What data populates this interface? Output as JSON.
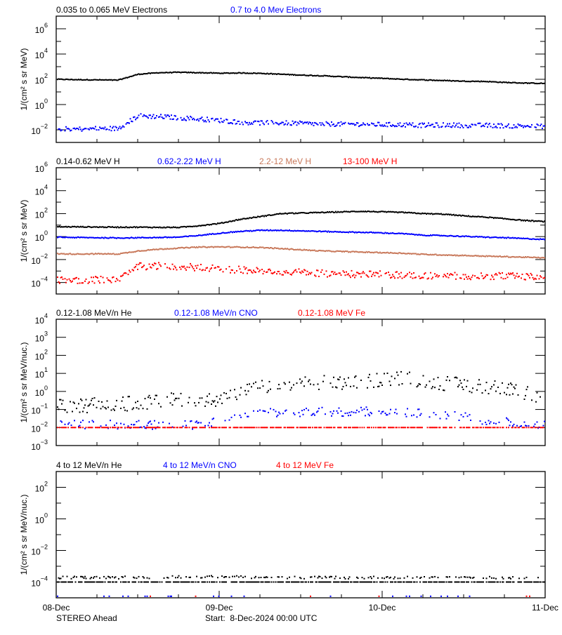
{
  "chart_data": [
    {
      "type": "scatter",
      "legend": [
        {
          "label": "0.035 to 0.065 MeV Electrons",
          "color": "#000000"
        },
        {
          "label": "0.7 to 4.0 Mev Electrons",
          "color": "#0000ff"
        }
      ],
      "ylabel": "1/(cm² s sr MeV)",
      "yscale": "log",
      "ylim_log10": [
        -3,
        7
      ],
      "ytick_labels_log10": [
        -2,
        0,
        2,
        4,
        6
      ],
      "x_hours": [
        0,
        3,
        6,
        9,
        12,
        15,
        18,
        21,
        24,
        27,
        30,
        33,
        36,
        39,
        42,
        45,
        48,
        51,
        54,
        57,
        60,
        63,
        66,
        69,
        72
      ],
      "series": [
        {
          "name": "0.035 to 0.065 MeV Electrons",
          "color": "#000000",
          "spread_log10": 0.03,
          "density": 1,
          "values_log10": [
            2.0,
            1.97,
            1.95,
            1.93,
            2.4,
            2.52,
            2.55,
            2.52,
            2.48,
            2.5,
            2.47,
            2.4,
            2.33,
            2.28,
            2.2,
            2.13,
            2.07,
            2.0,
            1.95,
            1.9,
            1.85,
            1.83,
            1.75,
            1.7,
            1.67
          ]
        },
        {
          "name": "0.7 to 4.0 Mev Electrons",
          "color": "#0000ff",
          "spread_log10": 0.18,
          "density": 0.9,
          "values_log10": [
            -1.9,
            -1.95,
            -1.9,
            -1.9,
            -0.9,
            -0.95,
            -1.05,
            -1.15,
            -1.25,
            -1.4,
            -1.45,
            -1.45,
            -1.5,
            -1.55,
            -1.55,
            -1.55,
            -1.6,
            -1.6,
            -1.65,
            -1.62,
            -1.65,
            -1.65,
            -1.68,
            -1.7,
            -1.72
          ]
        }
      ]
    },
    {
      "type": "scatter",
      "legend": [
        {
          "label": "0.14-0.62 MeV H",
          "color": "#000000"
        },
        {
          "label": "0.62-2.22 MeV H",
          "color": "#0000ff"
        },
        {
          "label": "2.2-12 MeV H",
          "color": "#c8785a"
        },
        {
          "label": "13-100 MeV H",
          "color": "#ff0000"
        }
      ],
      "ylabel": "1/(cm² s sr MeV)",
      "yscale": "log",
      "ylim_log10": [
        -5,
        6
      ],
      "ytick_labels_log10": [
        -4,
        -2,
        0,
        2,
        4,
        6
      ],
      "x_hours": [
        0,
        3,
        6,
        9,
        12,
        15,
        18,
        21,
        24,
        27,
        30,
        33,
        36,
        39,
        42,
        45,
        48,
        51,
        54,
        57,
        60,
        63,
        66,
        69,
        72
      ],
      "series": [
        {
          "name": "0.14-0.62 MeV H",
          "color": "#000000",
          "spread_log10": 0.04,
          "density": 1,
          "values_log10": [
            0.85,
            0.85,
            0.83,
            0.82,
            0.82,
            0.8,
            0.8,
            0.95,
            1.15,
            1.5,
            1.75,
            2.0,
            2.05,
            2.1,
            2.15,
            2.2,
            2.15,
            2.1,
            2.0,
            1.95,
            1.8,
            1.7,
            1.55,
            1.4,
            1.3
          ]
        },
        {
          "name": "0.62-2.22 MeV H",
          "color": "#0000ff",
          "spread_log10": 0.04,
          "density": 1,
          "values_log10": [
            -0.05,
            -0.08,
            -0.1,
            -0.12,
            -0.1,
            -0.08,
            -0.05,
            0.1,
            0.3,
            0.45,
            0.55,
            0.55,
            0.5,
            0.45,
            0.4,
            0.37,
            0.32,
            0.25,
            0.12,
            0.08,
            0.02,
            -0.05,
            -0.1,
            -0.18,
            -0.25
          ]
        },
        {
          "name": "2.2-12 MeV H",
          "color": "#c8785a",
          "spread_log10": 0.04,
          "density": 1,
          "values_log10": [
            -1.5,
            -1.52,
            -1.5,
            -1.52,
            -1.25,
            -1.1,
            -1.0,
            -0.92,
            -0.9,
            -0.92,
            -0.95,
            -1.05,
            -1.15,
            -1.25,
            -1.3,
            -1.35,
            -1.4,
            -1.45,
            -1.55,
            -1.6,
            -1.65,
            -1.7,
            -1.75,
            -1.8,
            -1.85
          ]
        },
        {
          "name": "13-100 MeV H",
          "color": "#ff0000",
          "spread_log10": 0.3,
          "density": 0.85,
          "values_log10": [
            -3.8,
            -3.8,
            -3.75,
            -3.75,
            -2.6,
            -2.55,
            -2.6,
            -2.7,
            -2.8,
            -2.9,
            -3.0,
            -3.1,
            -3.1,
            -3.2,
            -3.25,
            -3.3,
            -3.3,
            -3.35,
            -3.4,
            -3.4,
            -3.45,
            -3.45,
            -3.45,
            -3.5,
            -3.5
          ]
        }
      ]
    },
    {
      "type": "scatter",
      "legend": [
        {
          "label": "0.12-1.08 MeV/n He",
          "color": "#000000"
        },
        {
          "label": "0.12-1.08 MeV/n CNO",
          "color": "#0000ff"
        },
        {
          "label": "0.12-1.08 MeV Fe",
          "color": "#ff0000"
        }
      ],
      "ylabel": "1/(cm² s sr MeV/nuc.)",
      "yscale": "log",
      "ylim_log10": [
        -3,
        4
      ],
      "ytick_labels_log10": [
        -3,
        -2,
        -1,
        0,
        1,
        2,
        3,
        4
      ],
      "x_hours": [
        0,
        3,
        6,
        9,
        12,
        15,
        18,
        21,
        24,
        27,
        30,
        33,
        36,
        39,
        42,
        45,
        48,
        51,
        54,
        57,
        60,
        63,
        66,
        69,
        72
      ],
      "series": [
        {
          "name": "0.12-1.08 MeV/n He",
          "color": "#000000",
          "spread_log10": 0.4,
          "density": 0.55,
          "values_log10": [
            -0.85,
            -0.8,
            -0.75,
            -0.7,
            -0.65,
            -0.55,
            -0.45,
            -0.4,
            -0.5,
            -0.1,
            0.25,
            0.35,
            0.45,
            0.5,
            0.45,
            0.5,
            0.7,
            0.75,
            0.6,
            0.45,
            0.35,
            0.3,
            0.15,
            -0.1,
            -0.35
          ]
        },
        {
          "name": "0.12-1.08 MeV/n CNO",
          "color": "#0000ff",
          "spread_log10": 0.25,
          "density": 0.4,
          "values_log10": [
            -1.85,
            -1.85,
            -1.85,
            -1.85,
            -1.85,
            -1.85,
            -1.85,
            -1.85,
            -1.6,
            -1.3,
            -1.2,
            -1.2,
            -1.2,
            -1.1,
            -1.15,
            -1.1,
            -1.2,
            -1.15,
            -1.2,
            -1.3,
            -1.4,
            -1.6,
            -1.7,
            -1.8,
            -1.85
          ]
        },
        {
          "name": "0.12-1.08 MeV Fe",
          "color": "#ff0000",
          "spread_log10": 0.0,
          "density": 0.7,
          "values_log10": [
            -2,
            -2,
            -2,
            -2,
            -2,
            -2,
            -2,
            -2,
            -2,
            -2,
            -2,
            -2,
            -2,
            -2,
            -2,
            -2,
            -2,
            -2,
            -2,
            -2,
            -2,
            -2,
            -2,
            -2,
            -2
          ]
        }
      ]
    },
    {
      "type": "scatter",
      "legend": [
        {
          "label": "4 to 12 MeV/n He",
          "color": "#000000"
        },
        {
          "label": "4 to 12 MeV/n CNO",
          "color": "#0000ff"
        },
        {
          "label": "4 to 12 MeV Fe",
          "color": "#ff0000"
        }
      ],
      "ylabel": "1/(cm² s sr MeV/nuc.)",
      "yscale": "log",
      "ylim_log10": [
        -5,
        3
      ],
      "ytick_labels_log10": [
        -4,
        -2,
        0,
        2
      ],
      "x_hours": [
        0,
        3,
        6,
        9,
        12,
        15,
        18,
        21,
        24,
        27,
        30,
        33,
        36,
        39,
        42,
        45,
        48,
        51,
        54,
        57,
        60,
        63,
        66,
        69,
        72
      ],
      "series": [
        {
          "name": "4 to 12 MeV/n He",
          "color": "#000000",
          "spread_log10": 0.0,
          "density": 0.75,
          "values_log10": [
            -4,
            -4,
            -4,
            -4,
            -4,
            -4,
            -4,
            -4,
            -4,
            -4,
            -4,
            -4,
            -4,
            -4,
            -4,
            -4,
            -4,
            -4,
            -4,
            -4,
            -4,
            -4,
            -4,
            -4,
            -4
          ]
        },
        {
          "name": "4 to 12 MeV/n He",
          "color": "#000000",
          "spread_log10": 0.08,
          "density": 0.35,
          "values_log10": [
            -3.72,
            -3.72,
            -3.72,
            -3.72,
            -3.7,
            -3.7,
            -3.68,
            -3.68,
            -3.65,
            -3.68,
            -3.7,
            -3.7,
            -3.72,
            -3.72,
            -3.72,
            -3.72,
            -3.72,
            -3.72,
            -3.72,
            -3.72,
            -3.72,
            -3.72,
            -3.72,
            -3.72,
            -3.72
          ]
        },
        {
          "name": "4 to 12 MeV/n CNO",
          "color": "#0000ff",
          "spread_log10": 0.0,
          "density": 0.03,
          "values_log10": [
            -4.9,
            -4.9,
            -4.9,
            -4.9,
            -4.9,
            -4.9,
            -4.9,
            -4.9,
            -4.9,
            -4.9,
            -4.9,
            -4.9,
            -4.9,
            -4.9,
            -4.9,
            -4.9,
            -4.9,
            -4.9,
            -4.9,
            -4.9,
            -4.9,
            -4.9,
            -4.9,
            -4.9,
            -4.9
          ]
        },
        {
          "name": "4 to 12 MeV Fe",
          "color": "#ff0000",
          "spread_log10": 0.0,
          "density": 0.01,
          "values_log10": [
            -4.9,
            -4.9,
            -4.9,
            -4.9,
            -4.9,
            -4.9,
            -4.9,
            -4.9,
            -4.9,
            -4.9,
            -4.9,
            -4.9,
            -4.9,
            -4.9,
            -4.9,
            -4.9,
            -4.9,
            -4.9,
            -4.9,
            -4.9,
            -4.9,
            -4.9,
            -4.9,
            -4.9,
            -4.9
          ]
        }
      ]
    }
  ],
  "xaxis": {
    "range_hours": [
      0,
      72
    ],
    "tick_labels": [
      "08-Dec",
      "09-Dec",
      "10-Dec",
      "11-Dec"
    ]
  },
  "footer": {
    "spacecraft": "STEREO Ahead",
    "start": "Start:  8-Dec-2024 00:00 UTC"
  }
}
